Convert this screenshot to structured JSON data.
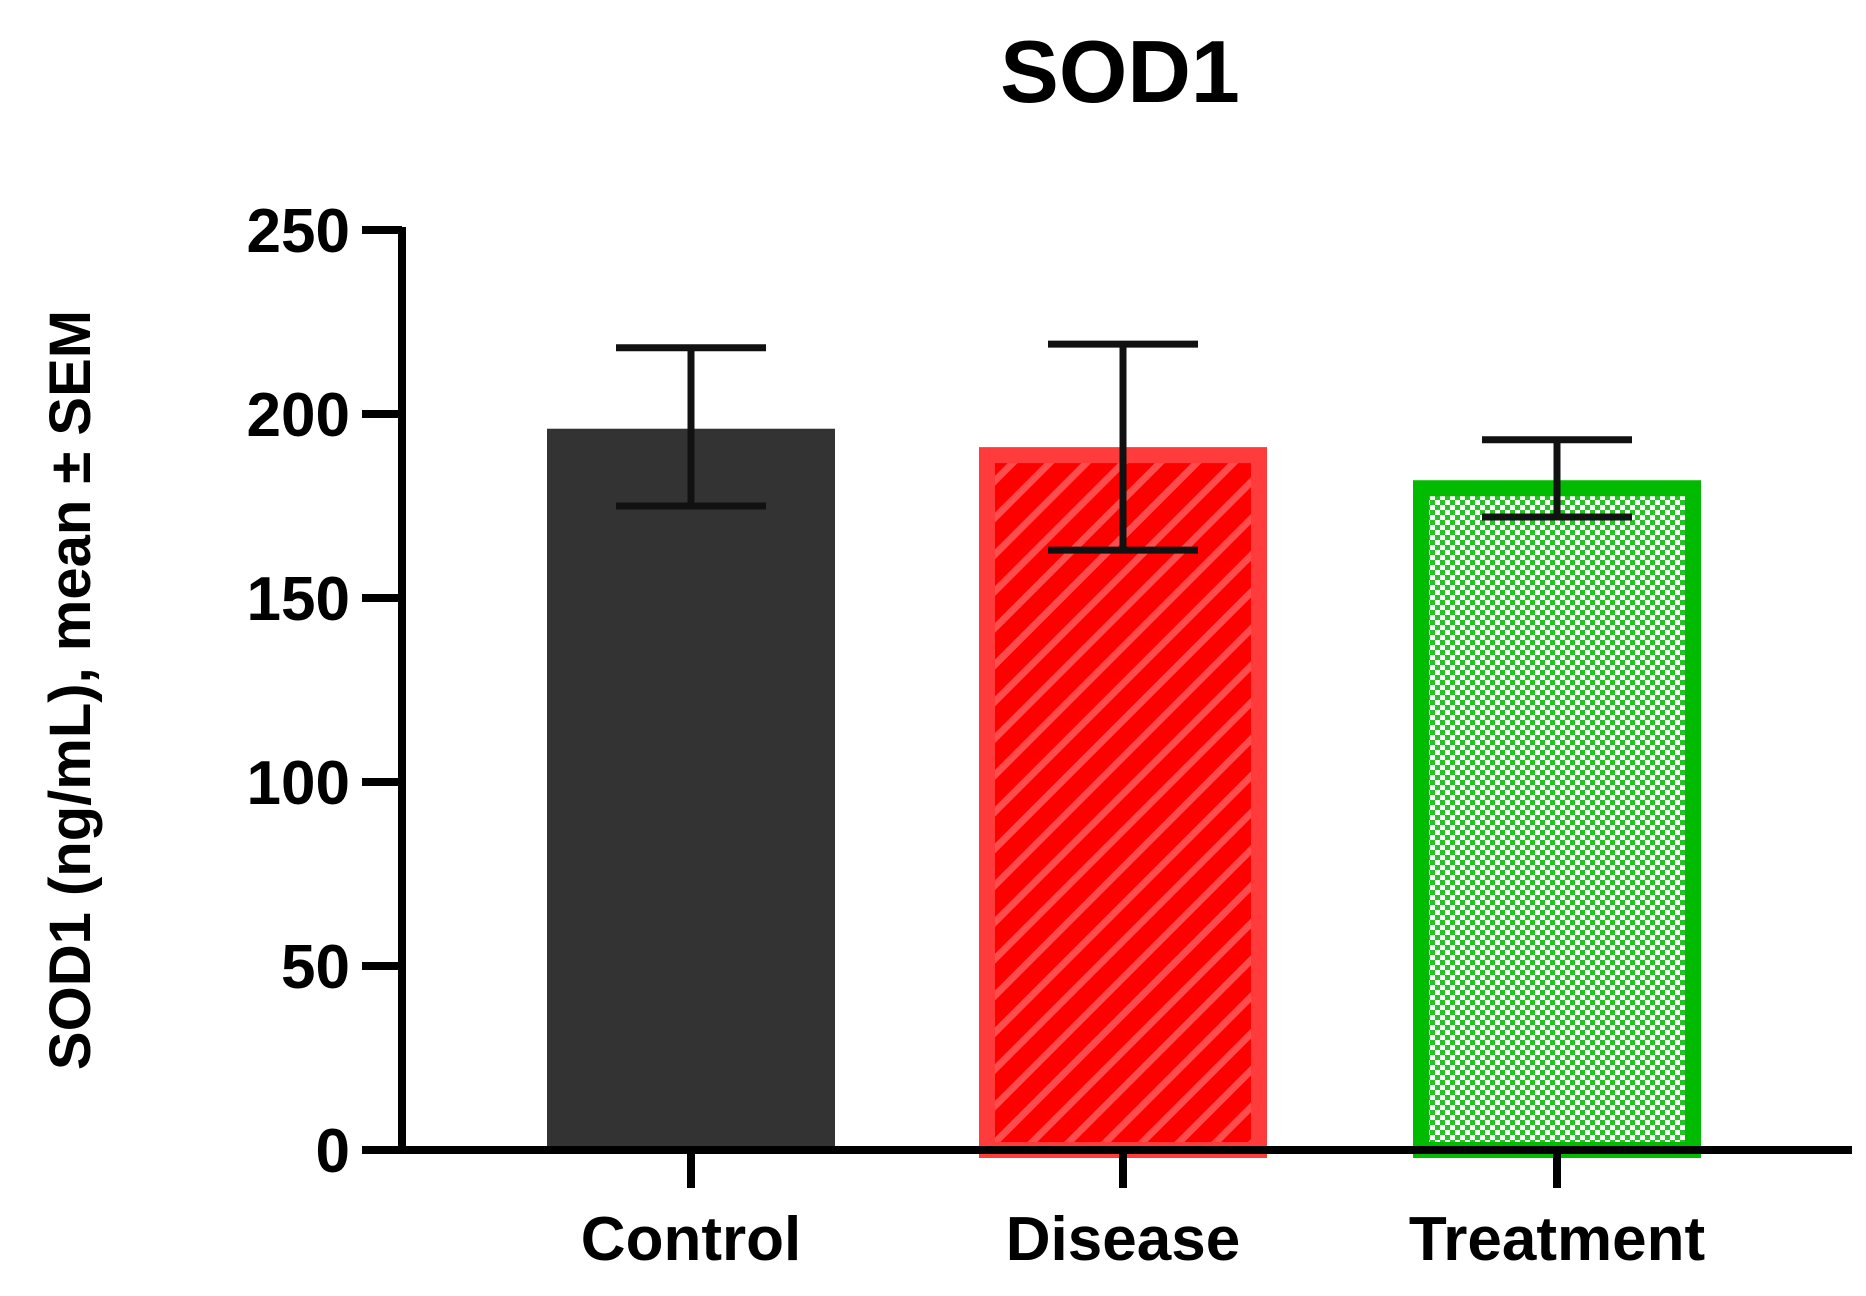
{
  "chart_data": {
    "type": "bar",
    "title": "SOD1",
    "xlabel": "",
    "ylabel": "SOD1 (ng/mL), mean ± SEM",
    "ylim": [
      0,
      250
    ],
    "yticks": [
      0,
      50,
      100,
      150,
      200,
      250
    ],
    "categories": [
      "Control",
      "Disease",
      "Treatment"
    ],
    "values": [
      196,
      191,
      182
    ],
    "error_upper": [
      218,
      219,
      193
    ],
    "error_lower": [
      175,
      163,
      172
    ],
    "grid": false,
    "legend": "none",
    "colors": {
      "control_fill": "#333333",
      "disease_fill": "#ff0000",
      "disease_border": "#ff3b3b",
      "disease_hatch": "#ff4d4d",
      "treatment_border": "#00bb00",
      "treatment_check_dark": "#22c422",
      "treatment_check_light": "#ffffff",
      "axis": "#000000"
    },
    "patterns": [
      "solid",
      "diagonal-hatch",
      "checker"
    ]
  }
}
